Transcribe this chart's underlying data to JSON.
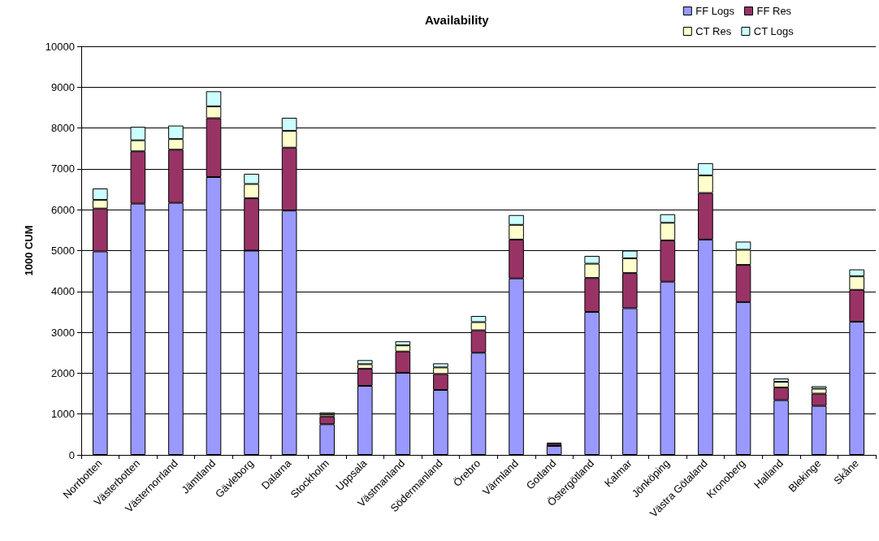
{
  "chart_data": {
    "type": "bar",
    "title": "Availability",
    "ylabel": "1000 CUM",
    "stacked": true,
    "grid": "y",
    "legend": "top right",
    "categories": [
      "Norrbotten",
      "Västerbotten",
      "Västernorrland",
      "Jämtland",
      "Gävleborg",
      "Dalarna",
      "Stockholm",
      "Uppsala",
      "Västmanland",
      "Södermanland",
      "Örebro",
      "Värmland",
      "Gotland",
      "Östergötland",
      "Kalmar",
      "Jönköping",
      "Västra Götaland",
      "Kronoberg",
      "Halland",
      "Blekinge",
      "Skåne"
    ],
    "ylim": [
      0,
      10000
    ],
    "yticks": [
      0,
      1000,
      2000,
      3000,
      4000,
      5000,
      6000,
      7000,
      8000,
      9000,
      10000
    ],
    "series": [
      {
        "name": "FF Logs",
        "color": "#9999ff",
        "values": [
          4980,
          6150,
          6170,
          6800,
          5000,
          5980,
          750,
          1690,
          2010,
          1590,
          2500,
          4320,
          220,
          3500,
          3590,
          4240,
          5270,
          3740,
          1340,
          1200,
          3260
        ]
      },
      {
        "name": "FF Res",
        "color": "#993366",
        "values": [
          1050,
          1280,
          1300,
          1440,
          1280,
          1540,
          190,
          420,
          520,
          390,
          550,
          950,
          50,
          830,
          860,
          1010,
          1140,
          910,
          310,
          300,
          780
        ]
      },
      {
        "name": "CT Res",
        "color": "#ffffcc",
        "values": [
          210,
          270,
          260,
          290,
          350,
          410,
          50,
          110,
          150,
          160,
          200,
          360,
          null,
          350,
          360,
          430,
          430,
          370,
          140,
          120,
          330
        ]
      },
      {
        "name": "CT Logs",
        "color": "#ccffff",
        "values": [
          280,
          330,
          330,
          370,
          250,
          320,
          50,
          100,
          100,
          100,
          150,
          240,
          30,
          190,
          190,
          210,
          300,
          200,
          80,
          60,
          170
        ]
      }
    ]
  }
}
